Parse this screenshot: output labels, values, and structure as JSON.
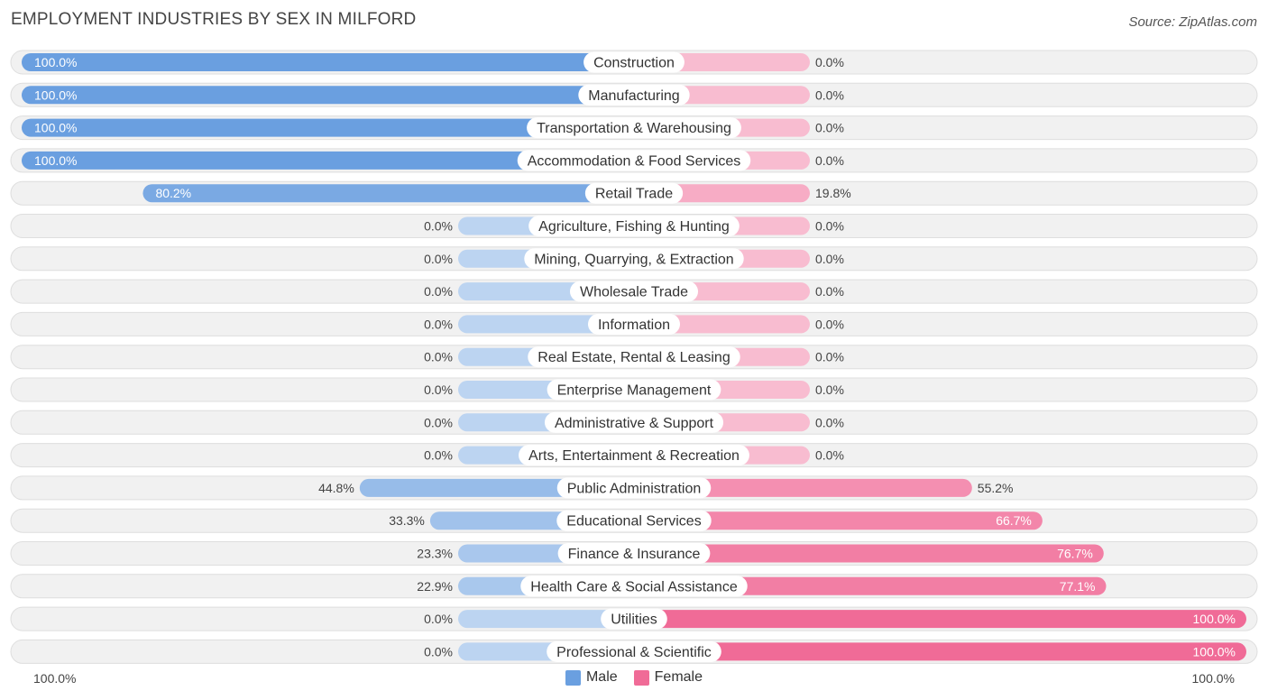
{
  "header": {
    "title": "EMPLOYMENT INDUSTRIES BY SEX IN MILFORD",
    "source": "Source: ZipAtlas.com"
  },
  "legend": {
    "male_label": "Male",
    "female_label": "Female",
    "male_color": "#6a9fe0",
    "female_color": "#f06b97"
  },
  "axis": {
    "left_label": "100.0%",
    "right_label": "100.0%"
  },
  "chart_data": {
    "type": "bar",
    "orientation": "horizontal-diverging",
    "title": "EMPLOYMENT INDUSTRIES BY SEX IN MILFORD",
    "categories": [
      "Construction",
      "Manufacturing",
      "Transportation & Warehousing",
      "Accommodation & Food Services",
      "Retail Trade",
      "Agriculture, Fishing & Hunting",
      "Mining, Quarrying, & Extraction",
      "Wholesale Trade",
      "Information",
      "Real Estate, Rental & Leasing",
      "Enterprise Management",
      "Administrative & Support",
      "Arts, Entertainment & Recreation",
      "Public Administration",
      "Educational Services",
      "Finance & Insurance",
      "Health Care & Social Assistance",
      "Utilities",
      "Professional & Scientific"
    ],
    "series": [
      {
        "name": "Male",
        "values": [
          100.0,
          100.0,
          100.0,
          100.0,
          80.2,
          0.0,
          0.0,
          0.0,
          0.0,
          0.0,
          0.0,
          0.0,
          0.0,
          44.8,
          33.3,
          23.3,
          22.9,
          0.0,
          0.0
        ],
        "labels": [
          "100.0%",
          "100.0%",
          "100.0%",
          "100.0%",
          "80.2%",
          "0.0%",
          "0.0%",
          "0.0%",
          "0.0%",
          "0.0%",
          "0.0%",
          "0.0%",
          "0.0%",
          "44.8%",
          "33.3%",
          "23.3%",
          "22.9%",
          "0.0%",
          "0.0%"
        ]
      },
      {
        "name": "Female",
        "values": [
          0.0,
          0.0,
          0.0,
          0.0,
          19.8,
          0.0,
          0.0,
          0.0,
          0.0,
          0.0,
          0.0,
          0.0,
          0.0,
          55.2,
          66.7,
          76.7,
          77.1,
          100.0,
          100.0
        ],
        "labels": [
          "0.0%",
          "0.0%",
          "0.0%",
          "0.0%",
          "19.8%",
          "0.0%",
          "0.0%",
          "0.0%",
          "0.0%",
          "0.0%",
          "0.0%",
          "0.0%",
          "0.0%",
          "55.2%",
          "66.7%",
          "76.7%",
          "77.1%",
          "100.0%",
          "100.0%"
        ]
      }
    ],
    "xlim": [
      -100,
      100
    ],
    "legend_position": "bottom-center",
    "grid": false
  }
}
